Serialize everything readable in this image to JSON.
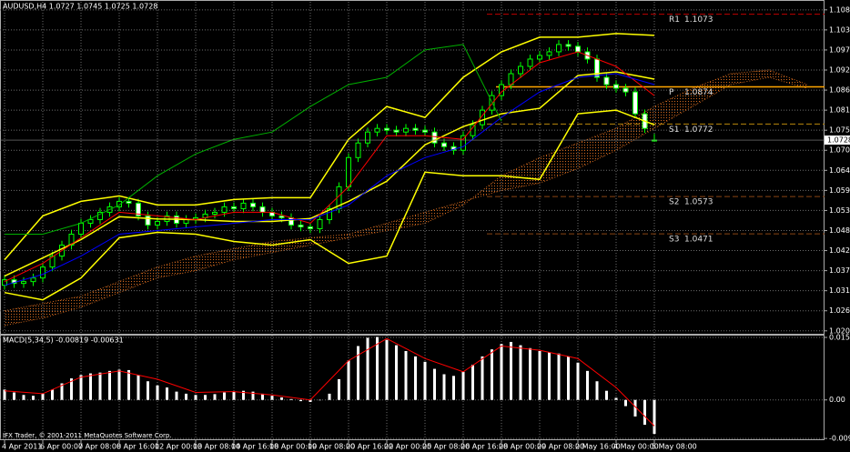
{
  "chart_data": [
    {
      "type": "candlestick",
      "title": "AUDUSD,H4 1.0727 1.0745 1.0725 1.0728",
      "footer": "IFX Trader, © 2001-2011 MetaQuotes Software Corp.",
      "categories": [
        "4 Apr 2011",
        null,
        null,
        null,
        "6 Apr 00:00",
        null,
        null,
        null,
        "7 Apr 08:00",
        null,
        null,
        null,
        "8 Apr 16:00",
        null,
        null,
        null,
        "12 Apr 00:00",
        null,
        null,
        null,
        "13 Apr 08:00",
        null,
        null,
        null,
        "14 Apr 16:00",
        null,
        null,
        null,
        "18 Apr 00:00",
        null,
        null,
        null,
        "19 Apr 08:00",
        null,
        null,
        null,
        "20 Apr 16:00",
        null,
        null,
        null,
        "22 Apr 00:00",
        null,
        null,
        null,
        "25 Apr 08:00",
        null,
        null,
        null,
        "26 Apr 16:00",
        null,
        null,
        null,
        "28 Apr 00:00",
        null,
        null,
        null,
        "29 Apr 08:00",
        null,
        null,
        null,
        "2 May 16:00",
        null,
        null,
        null,
        "4 May 00:00",
        null,
        null,
        null,
        "5 May 08:00"
      ],
      "open": [
        1.033,
        1.0345,
        1.0335,
        1.034,
        1.035,
        1.038,
        1.041,
        1.044,
        1.047,
        1.05,
        1.051,
        1.053,
        1.0545,
        1.056,
        1.0555,
        1.052,
        1.0495,
        1.0505,
        1.052,
        1.05,
        1.051,
        1.0515,
        1.0525,
        1.053,
        1.0545,
        1.054,
        1.0555,
        1.0545,
        1.053,
        1.052,
        1.0515,
        1.0495,
        1.049,
        1.0485,
        1.051,
        1.054,
        1.06,
        1.068,
        1.072,
        1.075,
        1.076,
        1.0755,
        1.075,
        1.076,
        1.0755,
        1.075,
        1.072,
        1.071,
        1.07,
        1.074,
        1.077,
        1.081,
        1.085,
        1.088,
        1.091,
        1.093,
        1.095,
        1.096,
        1.097,
        1.099,
        1.0985,
        1.097,
        1.095,
        1.09,
        1.088,
        1.087,
        1.086,
        1.08,
        1.0727
      ],
      "high": [
        1.0357,
        1.0357,
        1.0352,
        1.0362,
        1.0392,
        1.0422,
        1.0452,
        1.0482,
        1.0512,
        1.0522,
        1.0542,
        1.0557,
        1.0572,
        1.0572,
        1.0567,
        1.0532,
        1.0517,
        1.0532,
        1.0532,
        1.0522,
        1.0527,
        1.0537,
        1.0542,
        1.0557,
        1.0557,
        1.0567,
        1.0567,
        1.0557,
        1.0542,
        1.0532,
        1.0527,
        1.0507,
        1.0502,
        1.0522,
        1.0552,
        1.0612,
        1.0692,
        1.0732,
        1.0762,
        1.0772,
        1.0772,
        1.0767,
        1.0772,
        1.0772,
        1.0767,
        1.0762,
        1.0732,
        1.0722,
        1.0752,
        1.0782,
        1.0822,
        1.0862,
        1.0892,
        1.0922,
        1.0942,
        1.0962,
        1.0972,
        1.0982,
        1.1002,
        1.1002,
        1.0997,
        1.0982,
        1.0962,
        1.0912,
        1.0892,
        1.0882,
        1.0872,
        1.0812,
        1.0745
      ],
      "low": [
        1.0318,
        1.0323,
        1.0323,
        1.0328,
        1.0338,
        1.0368,
        1.0398,
        1.0428,
        1.0458,
        1.0488,
        1.0498,
        1.0518,
        1.0533,
        1.0543,
        1.0508,
        1.0483,
        1.0483,
        1.0493,
        1.0488,
        1.0488,
        1.0498,
        1.0503,
        1.0513,
        1.0518,
        1.0528,
        1.0528,
        1.0533,
        1.0518,
        1.0508,
        1.0503,
        1.0483,
        1.0478,
        1.0473,
        1.0473,
        1.0498,
        1.0528,
        1.0588,
        1.0668,
        1.0708,
        1.0738,
        1.0743,
        1.0738,
        1.0738,
        1.0743,
        1.0738,
        1.0708,
        1.0698,
        1.0688,
        1.0688,
        1.0728,
        1.0758,
        1.0798,
        1.0838,
        1.0868,
        1.0898,
        1.0918,
        1.0938,
        1.0948,
        1.0958,
        1.0973,
        1.0958,
        1.0938,
        1.0888,
        1.0868,
        1.0858,
        1.0848,
        1.0788,
        1.0748,
        1.0725
      ],
      "close": [
        1.0345,
        1.0335,
        1.034,
        1.035,
        1.038,
        1.041,
        1.044,
        1.047,
        1.05,
        1.051,
        1.053,
        1.0545,
        1.056,
        1.0555,
        1.052,
        1.0495,
        1.0505,
        1.052,
        1.05,
        1.051,
        1.0515,
        1.0525,
        1.053,
        1.0545,
        1.054,
        1.0555,
        1.0545,
        1.053,
        1.052,
        1.0515,
        1.0495,
        1.049,
        1.0485,
        1.051,
        1.054,
        1.06,
        1.068,
        1.072,
        1.075,
        1.076,
        1.0755,
        1.075,
        1.076,
        1.0755,
        1.075,
        1.072,
        1.071,
        1.07,
        1.074,
        1.077,
        1.081,
        1.085,
        1.088,
        1.091,
        1.093,
        1.095,
        1.096,
        1.097,
        1.099,
        1.0985,
        1.097,
        1.095,
        1.09,
        1.088,
        1.087,
        1.086,
        1.08,
        1.076,
        1.0728
      ],
      "candle_color": "#00ff00",
      "bull_fill": "#000000",
      "bear_fill": "#ffffff",
      "lines": [
        {
          "color": "#ffff00",
          "values": [
            1.04,
            1.052,
            1.056,
            1.0575,
            1.055,
            1.055,
            1.0565,
            1.057,
            1.057,
            1.073,
            1.082,
            1.079,
            1.09,
            1.097,
            1.101,
            1.101,
            1.102,
            1.1015
          ]
        },
        {
          "color": "#ffff00",
          "values": [
            1.0355,
            1.0405,
            1.0455,
            1.0518,
            1.0512,
            1.051,
            1.0505,
            1.0505,
            1.0513,
            1.056,
            1.0615,
            1.0715,
            1.0765,
            1.08,
            1.0815,
            1.0905,
            1.0915,
            1.0895
          ]
        },
        {
          "color": "#ffff00",
          "values": [
            1.031,
            1.029,
            1.035,
            1.046,
            1.0475,
            1.047,
            1.045,
            1.044,
            1.0455,
            1.039,
            1.041,
            1.064,
            1.063,
            1.063,
            1.062,
            1.08,
            1.081,
            1.077
          ]
        },
        {
          "color": "#ff0000",
          "values": [
            1.034,
            1.039,
            1.046,
            1.053,
            1.052,
            1.051,
            1.053,
            1.053,
            1.05,
            1.06,
            1.074,
            1.074,
            1.073,
            1.086,
            1.094,
            1.097,
            1.093,
            1.085
          ]
        },
        {
          "color": "#0000ff",
          "values": [
            1.033,
            1.036,
            1.041,
            1.047,
            1.048,
            1.049,
            1.05,
            1.051,
            1.051,
            1.055,
            1.063,
            1.068,
            1.071,
            1.079,
            1.086,
            1.09,
            1.091,
            1.088
          ]
        },
        {
          "color": "#00b000",
          "values": [
            1.047,
            1.047,
            1.05,
            1.055,
            1.063,
            1.069,
            1.073,
            1.075,
            1.082,
            1.088,
            1.09,
            1.0975,
            1.099,
            1.078,
            null,
            null,
            null,
            null
          ]
        }
      ],
      "cloud": {
        "color": "#d2691e",
        "span_a": [
          1.026,
          1.028,
          1.03,
          1.034,
          1.038,
          1.041,
          1.043,
          1.045,
          1.046,
          1.047,
          1.05,
          1.053,
          1.056,
          1.059,
          1.061,
          1.065,
          1.07,
          1.076,
          1.082,
          1.088,
          1.09,
          1.087
        ],
        "span_b": [
          1.022,
          1.024,
          1.027,
          1.031,
          1.035,
          1.037,
          1.04,
          1.042,
          1.044,
          1.046,
          1.048,
          1.05,
          1.055,
          1.063,
          1.068,
          1.072,
          1.076,
          1.082,
          1.087,
          1.091,
          1.092,
          1.088
        ]
      },
      "levels": [
        {
          "name": "R1",
          "value": 1.1073,
          "color": "#c00000",
          "dashed": true
        },
        {
          "name": "P",
          "value": 1.0874,
          "color": "#ffa500",
          "dashed": false
        },
        {
          "name": "S1",
          "value": 1.0772,
          "color": "#b8860b",
          "dashed": true
        },
        {
          "name": "S2",
          "value": 1.0573,
          "color": "#8b4513",
          "dashed": true
        },
        {
          "name": "S3",
          "value": 1.0471,
          "color": "#8b4513",
          "dashed": true
        }
      ],
      "ylim": [
        1.0197,
        1.1107
      ],
      "yticks": [
        1.1085,
        {
          "value": 1.103,
          "label": "1.1030"
        },
        1.0975,
        {
          "value": 1.092,
          "label": "1.0920"
        },
        1.0865,
        {
          "value": 1.081,
          "label": "1.0810"
        },
        1.0755,
        {
          "value": 1.07,
          "label": "1.0700"
        },
        1.0645,
        {
          "value": 1.059,
          "label": "1.0590"
        },
        1.0535,
        {
          "value": 1.048,
          "label": "1.0480"
        },
        1.0425,
        {
          "value": 1.037,
          "label": "1.0370"
        },
        1.0315,
        {
          "value": 1.026,
          "label": "1.0260"
        },
        1.0205
      ],
      "grid": true
    },
    {
      "type": "bar",
      "title": "MACD(5,34,5) -0.00819 -0.00631",
      "color": "#ffffff",
      "values": [
        0.0025,
        0.0018,
        0.0012,
        0.001,
        0.0015,
        0.0025,
        0.004,
        0.0052,
        0.006,
        0.0064,
        0.0066,
        0.007,
        0.0073,
        0.0072,
        0.006,
        0.0045,
        0.0035,
        0.003,
        0.002,
        0.0015,
        0.0012,
        0.0012,
        0.0014,
        0.0018,
        0.002,
        0.0022,
        0.002,
        0.0015,
        0.001,
        0.0006,
        0.0002,
        -0.0003,
        -0.0005,
        -0.0001,
        0.0015,
        0.005,
        0.0095,
        0.013,
        0.015,
        0.0152,
        0.0145,
        0.0132,
        0.0118,
        0.0105,
        0.0092,
        0.0075,
        0.0062,
        0.0058,
        0.0068,
        0.0085,
        0.0105,
        0.0122,
        0.0135,
        0.014,
        0.0132,
        0.0125,
        0.0118,
        0.0115,
        0.0112,
        0.0105,
        0.009,
        0.007,
        0.0045,
        0.0022,
        0.0005,
        -0.0015,
        -0.004,
        -0.006,
        -0.0082
      ],
      "signal": {
        "color": "#ff0000",
        "values": [
          0.0022,
          0.0015,
          0.0055,
          0.007,
          0.005,
          0.0018,
          0.002,
          0.0012,
          0.0,
          0.0095,
          0.0148,
          0.01,
          0.0068,
          0.013,
          0.012,
          0.01,
          0.003,
          -0.0063
        ]
      },
      "ylim": [
        -0.0095,
        0.01553
      ],
      "yticks": [
        0.01509,
        {
          "value": 0,
          "label": "0.00"
        },
        -0.0093
      ],
      "grid": true
    }
  ]
}
